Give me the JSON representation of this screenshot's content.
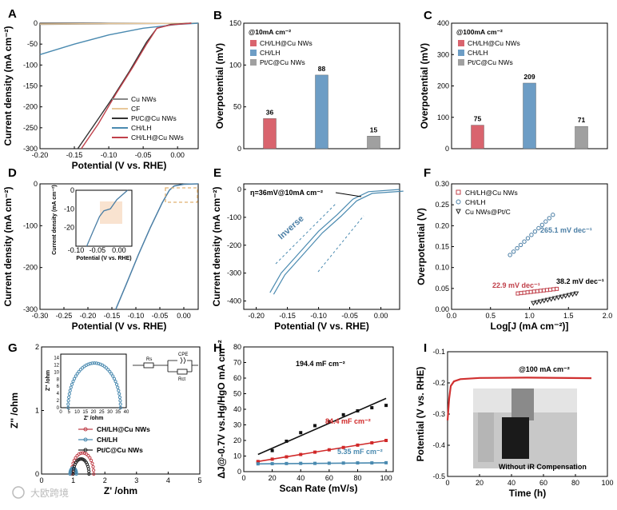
{
  "panel_letters": [
    "A",
    "B",
    "C",
    "D",
    "E",
    "F",
    "G",
    "H",
    "I"
  ],
  "chart_data": [
    {
      "panel": "A",
      "type": "line",
      "xlabel": "Potential (V vs. RHE)",
      "ylabel": "Current density (mA cm⁻²)",
      "xlim": [
        -0.2,
        0.03
      ],
      "ylim": [
        -300,
        0
      ],
      "xticks": [
        "-0.20",
        "-0.15",
        "-0.10",
        "-0.05",
        "0.00"
      ],
      "yticks": [
        "0",
        "-50",
        "-100",
        "-150",
        "-200",
        "-250",
        "-300"
      ],
      "legend_position": "bottom-right",
      "series": [
        {
          "name": "Cu NWs",
          "color": "#888888",
          "points": [
            [
              -0.2,
              -3
            ],
            [
              -0.1,
              -1.5
            ],
            [
              0,
              -0.5
            ],
            [
              0.03,
              0
            ]
          ]
        },
        {
          "name": "CF",
          "color": "#e8c89a",
          "points": [
            [
              -0.2,
              -2
            ],
            [
              -0.1,
              -1
            ],
            [
              0,
              -0.3
            ],
            [
              0.03,
              0
            ]
          ]
        },
        {
          "name": "Pt/C@Cu NWs",
          "color": "#333333",
          "points": [
            [
              -0.145,
              -300
            ],
            [
              -0.12,
              -240
            ],
            [
              -0.095,
              -180
            ],
            [
              -0.07,
              -115
            ],
            [
              -0.045,
              -45
            ],
            [
              -0.03,
              -12
            ],
            [
              -0.01,
              -3
            ],
            [
              0.02,
              0
            ]
          ]
        },
        {
          "name": "CH/LH",
          "color": "#4a8ab0",
          "points": [
            [
              -0.2,
              -75
            ],
            [
              -0.15,
              -50
            ],
            [
              -0.1,
              -28
            ],
            [
              -0.05,
              -12
            ],
            [
              0,
              -3
            ],
            [
              0.03,
              0
            ]
          ]
        },
        {
          "name": "CH/LH@Cu NWs",
          "color": "#c0404a",
          "points": [
            [
              -0.14,
              -300
            ],
            [
              -0.115,
              -240
            ],
            [
              -0.09,
              -170
            ],
            [
              -0.065,
              -105
            ],
            [
              -0.045,
              -50
            ],
            [
              -0.03,
              -12
            ],
            [
              -0.01,
              -4
            ],
            [
              0.02,
              0
            ]
          ]
        }
      ]
    },
    {
      "panel": "B",
      "type": "bar",
      "header": "@10mA cm⁻²",
      "ylabel": "Overpotential (mV)",
      "ylim": [
        0,
        150
      ],
      "yticks": [
        "0",
        "50",
        "100",
        "150"
      ],
      "categories": [
        "CH/LH@Cu NWs",
        "CH/LH",
        "Pt/C@Cu NWs"
      ],
      "values": [
        36,
        88,
        15
      ],
      "value_labels": [
        "36",
        "88",
        "15"
      ],
      "colors": [
        "#d9646e",
        "#6d9dc5",
        "#a0a0a0"
      ]
    },
    {
      "panel": "C",
      "type": "bar",
      "header": "@100mA cm⁻²",
      "ylabel": "Overpotential (mV)",
      "ylim": [
        0,
        400
      ],
      "yticks": [
        "0",
        "100",
        "200",
        "300",
        "400"
      ],
      "categories": [
        "CH/LH@Cu NWs",
        "CH/LH",
        "Pt/C@Cu NWs"
      ],
      "values": [
        75,
        209,
        71
      ],
      "value_labels": [
        "75",
        "209",
        "71"
      ],
      "colors": [
        "#d9646e",
        "#6d9dc5",
        "#a0a0a0"
      ]
    },
    {
      "panel": "D",
      "type": "line",
      "xlabel": "Potential (V vs. RHE)",
      "ylabel": "Current density (mA cm⁻²)",
      "xlim": [
        -0.3,
        0.03
      ],
      "ylim": [
        -300,
        0
      ],
      "xticks": [
        "-0.30",
        "-0.25",
        "-0.20",
        "-0.15",
        "-0.10",
        "-0.05",
        "0.00"
      ],
      "yticks": [
        "0",
        "-100",
        "-200",
        "-300"
      ],
      "series": [
        {
          "name": "",
          "color": "#4a7ea5",
          "points": [
            [
              -0.142,
              -300
            ],
            [
              -0.12,
              -240
            ],
            [
              -0.095,
              -170
            ],
            [
              -0.07,
              -105
            ],
            [
              -0.045,
              -45
            ],
            [
              -0.03,
              -15
            ],
            [
              -0.02,
              -5
            ],
            [
              0,
              -1
            ],
            [
              0.03,
              0
            ]
          ]
        }
      ],
      "inset": {
        "xlabel": "Potential (V vs. RHE)",
        "ylabel": "Current density (mA cm⁻²)",
        "xlim": [
          -0.1,
          0.03
        ],
        "ylim": [
          -30,
          0
        ],
        "xticks": [
          "-0.10",
          "-0.05",
          "0.00"
        ],
        "yticks": [
          "0",
          "-10",
          "-20"
        ],
        "points": [
          [
            -0.075,
            -30
          ],
          [
            -0.06,
            -22
          ],
          [
            -0.045,
            -14
          ],
          [
            -0.035,
            -11
          ],
          [
            -0.02,
            -10
          ],
          [
            -0.005,
            -5
          ],
          [
            0.01,
            -2
          ],
          [
            0.02,
            0
          ]
        ]
      }
    },
    {
      "panel": "E",
      "type": "line",
      "xlabel": "Potential (V vs. RHE)",
      "ylabel": "Current density (mA cm⁻²)",
      "xlim": [
        -0.22,
        0.03
      ],
      "ylim": [
        -430,
        20
      ],
      "xticks": [
        "-0.20",
        "-0.15",
        "-0.10",
        "-0.05",
        "0.00"
      ],
      "yticks": [
        "0",
        "-100",
        "-200",
        "-300",
        "-400"
      ],
      "annotation": "η=36mV@10mA cm⁻²",
      "arrow_label": "Inverse",
      "series": [
        {
          "name": "",
          "color": "#4a8ab0",
          "points": [
            [
              -0.178,
              -370
            ],
            [
              -0.16,
              -300
            ],
            [
              -0.13,
              -225
            ],
            [
              -0.1,
              -150
            ],
            [
              -0.07,
              -90
            ],
            [
              -0.045,
              -35
            ],
            [
              -0.02,
              -8
            ],
            [
              0.03,
              0
            ]
          ]
        }
      ]
    },
    {
      "panel": "F",
      "type": "scatter",
      "xlabel": "Log[J (mA cm⁻²)]",
      "ylabel": "Overpotential (V)",
      "xlim": [
        0,
        2
      ],
      "ylim": [
        0,
        0.3
      ],
      "xticks": [
        "0.0",
        "0.5",
        "1.0",
        "1.5",
        "2.0"
      ],
      "yticks": [
        "0.00",
        "0.05",
        "0.10",
        "0.15",
        "0.20",
        "0.25",
        "0.30"
      ],
      "legend_position": "top-left",
      "series": [
        {
          "name": "CH/LH@Cu NWs",
          "color": "#c0404a",
          "marker": "square",
          "points": [
            [
              0.85,
              0.038
            ],
            [
              1.35,
              0.049
            ]
          ],
          "tafel": "22.9 mV dec⁻¹"
        },
        {
          "name": "CH/LH",
          "color": "#4a7ea5",
          "marker": "circle",
          "points": [
            [
              0.75,
              0.13
            ],
            [
              1.3,
              0.226
            ]
          ],
          "tafel": "265.1 mV dec⁻¹"
        },
        {
          "name": "Cu NWs@Pt/C",
          "color": "#222222",
          "marker": "triangle",
          "points": [
            [
              1.05,
              0.015
            ],
            [
              1.6,
              0.038
            ]
          ],
          "tafel": "38.2 mV dec⁻¹"
        }
      ]
    },
    {
      "panel": "G",
      "type": "scatter",
      "xlabel": "Z' /ohm",
      "ylabel": "Z'' /ohm",
      "xlim": [
        0,
        5
      ],
      "ylim": [
        0,
        2
      ],
      "xticks": [
        "0",
        "1",
        "2",
        "3",
        "4",
        "5"
      ],
      "yticks": [
        "0",
        "1",
        "2"
      ],
      "legend_position": "center-left",
      "series": [
        {
          "name": "CH/LH@Cu NWs",
          "color": "#c0404a",
          "center": 1.3,
          "radius": 0.35
        },
        {
          "name": "CH/LH",
          "color": "#4a8ab0",
          "center": 1.0,
          "radius": 0.1
        },
        {
          "name": "Pt/C@Cu NWs",
          "color": "#222222",
          "center": 1.25,
          "radius": 0.25
        }
      ],
      "inset": {
        "xlabel": "Z' /ohm",
        "ylabel": "Z'' /ohm",
        "xlim": [
          0,
          40
        ],
        "ylim": [
          0,
          15
        ],
        "xticks": [
          "0",
          "5",
          "10",
          "15",
          "20",
          "25",
          "30",
          "35",
          "40"
        ],
        "yticks": [
          "0",
          "2",
          "4",
          "6",
          "8",
          "10",
          "12",
          "14"
        ],
        "center": 20.5,
        "radius": 16.0,
        "peak": 12.5,
        "circuit_labels": [
          "Rs",
          "CPE",
          "Rct"
        ]
      }
    },
    {
      "panel": "H",
      "type": "scatter",
      "xlabel": "Scan Rate (mV/s)",
      "ylabel": "ΔJ@-0.7V vs.Hg/HgO mA cm⁻²",
      "xlim": [
        0,
        105
      ],
      "ylim": [
        0,
        80
      ],
      "xticks": [
        "0",
        "20",
        "40",
        "60",
        "80",
        "100"
      ],
      "yticks": [
        "0",
        "10",
        "20",
        "30",
        "40",
        "50",
        "60",
        "70",
        "80"
      ],
      "series": [
        {
          "name": "",
          "color": "#111111",
          "fit_color": "#111111",
          "label": "194.4 mF cm⁻²",
          "x": [
            10,
            20,
            30,
            40,
            50,
            60,
            70,
            80,
            90,
            100
          ],
          "y": [
            6,
            13.5,
            19.5,
            25,
            29.5,
            32,
            36.5,
            39,
            41,
            42.5
          ],
          "fit": [
            [
              10,
              11
            ],
            [
              100,
              47
            ]
          ]
        },
        {
          "name": "",
          "color": "#d02828",
          "fit_color": "#d02828",
          "label": "84.4 mF cm⁻²",
          "x": [
            10,
            20,
            30,
            40,
            50,
            60,
            70,
            80,
            90,
            100
          ],
          "y": [
            6.5,
            8,
            9.5,
            11,
            12.5,
            14,
            15.5,
            17,
            18.5,
            20
          ],
          "fit": [
            [
              10,
              6.5
            ],
            [
              100,
              20
            ]
          ]
        },
        {
          "name": "",
          "color": "#4a8ab0",
          "fit_color": "#4a8ab0",
          "label": "5.35 mF cm⁻²",
          "x": [
            10,
            20,
            30,
            40,
            50,
            60,
            70,
            80,
            90,
            100
          ],
          "y": [
            5,
            5.1,
            5.2,
            5.3,
            5.3,
            5.4,
            5.5,
            5.6,
            5.6,
            5.7
          ],
          "fit": [
            [
              10,
              5
            ],
            [
              100,
              5.7
            ]
          ]
        }
      ]
    },
    {
      "panel": "I",
      "type": "line",
      "xlabel": "Time (h)",
      "ylabel": "Potential (V vs. RHE)",
      "xlim": [
        0,
        100
      ],
      "ylim": [
        -0.5,
        -0.1
      ],
      "xticks": [
        "0",
        "20",
        "40",
        "60",
        "80",
        "100"
      ],
      "yticks": [
        "-0.1",
        "-0.2",
        "-0.3",
        "-0.4",
        "-0.5"
      ],
      "annotation": "@100 mA cm⁻²",
      "inset_caption": "Without iR Compensation",
      "series": [
        {
          "name": "",
          "color": "#d03030",
          "points": [
            [
              0,
              -0.32
            ],
            [
              1,
              -0.25
            ],
            [
              2,
              -0.21
            ],
            [
              4,
              -0.195
            ],
            [
              8,
              -0.188
            ],
            [
              20,
              -0.184
            ],
            [
              50,
              -0.183
            ],
            [
              90,
              -0.185
            ]
          ]
        }
      ]
    }
  ],
  "watermark": "大欧跨境"
}
